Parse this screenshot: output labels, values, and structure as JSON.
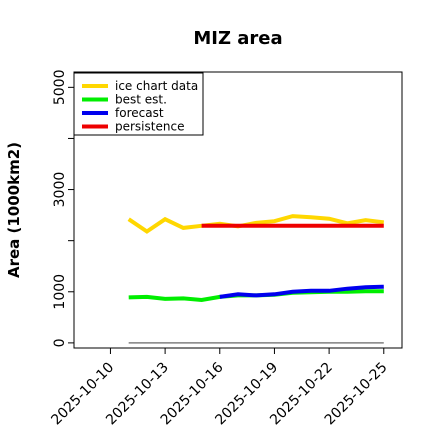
{
  "chart_data": {
    "type": "line",
    "title": "MIZ area",
    "xlabel": "",
    "ylabel": "Area (1000km2)",
    "xlim": [
      "2025-10-08",
      "2025-10-26"
    ],
    "ylim": [
      -100,
      5300
    ],
    "x_ticks": [
      "2025-10-10",
      "2025-10-13",
      "2025-10-16",
      "2025-10-19",
      "2025-10-22",
      "2025-10-25"
    ],
    "x_tick_highlight": {
      "label": "2025-10-16",
      "color": "#228B22"
    },
    "y_ticks_labeled": [
      0,
      1000,
      3000,
      5000
    ],
    "y_ticks_minor": [
      2000,
      4000
    ],
    "grid": false,
    "legend": "top-left",
    "series": [
      {
        "name": "ice chart data",
        "color": "#FFD700",
        "x": [
          "2025-10-11",
          "2025-10-12",
          "2025-10-13",
          "2025-10-14",
          "2025-10-15",
          "2025-10-16",
          "2025-10-17",
          "2025-10-18",
          "2025-10-19",
          "2025-10-20",
          "2025-10-21",
          "2025-10-22",
          "2025-10-23",
          "2025-10-24",
          "2025-10-25"
        ],
        "values": [
          2420,
          2180,
          2420,
          2250,
          2290,
          2330,
          2280,
          2350,
          2380,
          2480,
          2460,
          2430,
          2340,
          2400,
          2360
        ]
      },
      {
        "name": "best est.",
        "color": "#00EE00",
        "x": [
          "2025-10-11",
          "2025-10-12",
          "2025-10-13",
          "2025-10-14",
          "2025-10-15",
          "2025-10-16",
          "2025-10-17",
          "2025-10-18",
          "2025-10-19",
          "2025-10-20",
          "2025-10-21",
          "2025-10-22",
          "2025-10-23",
          "2025-10-24",
          "2025-10-25"
        ],
        "values": [
          890,
          900,
          860,
          870,
          840,
          900,
          930,
          930,
          940,
          980,
          990,
          1000,
          1000,
          1010,
          1010
        ]
      },
      {
        "name": "forecast",
        "color": "#0000EE",
        "x": [
          "2025-10-16",
          "2025-10-17",
          "2025-10-18",
          "2025-10-19",
          "2025-10-20",
          "2025-10-21",
          "2025-10-22",
          "2025-10-23",
          "2025-10-24",
          "2025-10-25"
        ],
        "values": [
          900,
          950,
          930,
          950,
          1000,
          1020,
          1020,
          1060,
          1090,
          1100
        ]
      },
      {
        "name": "persistence",
        "color": "#EE0000",
        "x": [
          "2025-10-15",
          "2025-10-16",
          "2025-10-17",
          "2025-10-18",
          "2025-10-19",
          "2025-10-20",
          "2025-10-21",
          "2025-10-22",
          "2025-10-23",
          "2025-10-24",
          "2025-10-25"
        ],
        "values": [
          2290,
          2290,
          2290,
          2290,
          2290,
          2290,
          2290,
          2290,
          2290,
          2290,
          2290
        ]
      }
    ],
    "reference_line": {
      "y": 0,
      "x": [
        "2025-10-11",
        "2025-10-25"
      ],
      "color": "#808080"
    }
  }
}
